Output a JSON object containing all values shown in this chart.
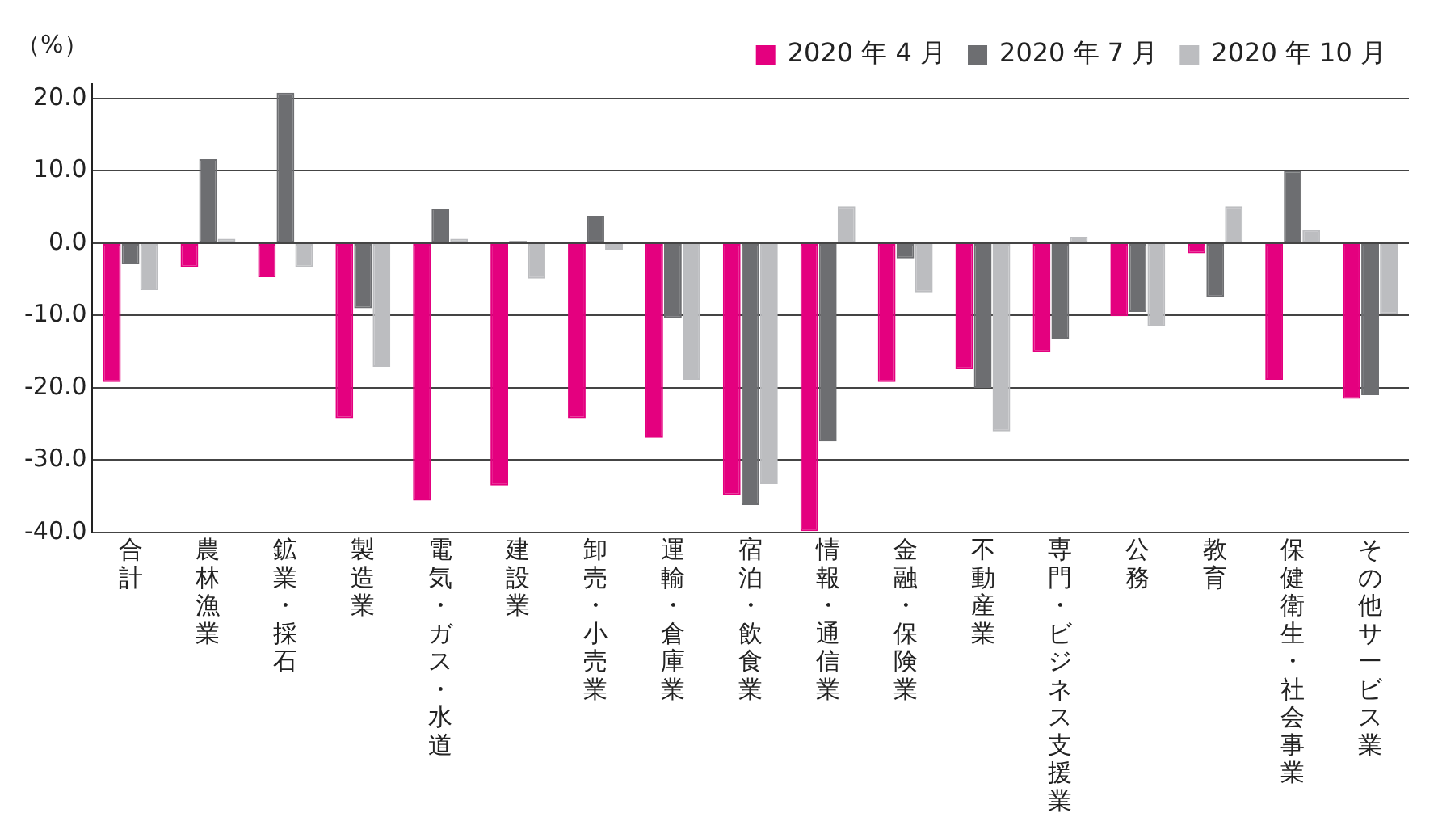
{
  "chart_data": {
    "type": "bar",
    "ylabel": "（%）",
    "categories": [
      "合計",
      "農林漁業",
      "鉱業・採石",
      "製造業",
      "電気・ガス・水道",
      "建設業",
      "卸売・小売業",
      "運輸・倉庫業",
      "宿泊・飲食業",
      "情報・通信業",
      "金融・保険業",
      "不動産業",
      "専門・ビジネス支援業",
      "公務",
      "教育",
      "保健衛生・社会事業",
      "その他サービス業"
    ],
    "series": [
      {
        "name": "2020 年 4 月",
        "color": "#e4007f",
        "values": [
          -19.2,
          -3.3,
          -4.7,
          -24.2,
          -35.6,
          -33.5,
          -24.2,
          -26.9,
          -34.8,
          -39.8,
          -19.2,
          -17.4,
          -15.0,
          -10.1,
          -1.4,
          -18.9,
          -21.5
        ]
      },
      {
        "name": "2020 年 7 月",
        "color": "#6d6e71",
        "values": [
          -2.9,
          11.6,
          20.8,
          -9.0,
          4.8,
          0.3,
          3.8,
          -10.3,
          -36.2,
          -27.4,
          -2.1,
          -20.0,
          -13.2,
          -9.5,
          -7.4,
          10.0,
          -21.0
        ]
      },
      {
        "name": "2020 年 10 月",
        "color": "#bcbdc0",
        "values": [
          -6.5,
          0.6,
          -3.3,
          -17.1,
          0.6,
          -4.9,
          -0.9,
          -18.9,
          -33.3,
          5.1,
          -6.8,
          -26.0,
          0.9,
          -11.5,
          5.1,
          1.8,
          -9.8
        ]
      }
    ],
    "ylim": [
      -40,
      22
    ],
    "yticks": [
      {
        "value": -40,
        "label": "-40.0"
      },
      {
        "value": -30,
        "label": "-30.0"
      },
      {
        "value": -20,
        "label": "-20.0"
      },
      {
        "value": -10,
        "label": "-10.0"
      },
      {
        "value": 0,
        "label": "0.0"
      },
      {
        "value": 10,
        "label": "10.0"
      },
      {
        "value": 20,
        "label": "20.0"
      }
    ],
    "grid": "y",
    "legend": "top right"
  }
}
